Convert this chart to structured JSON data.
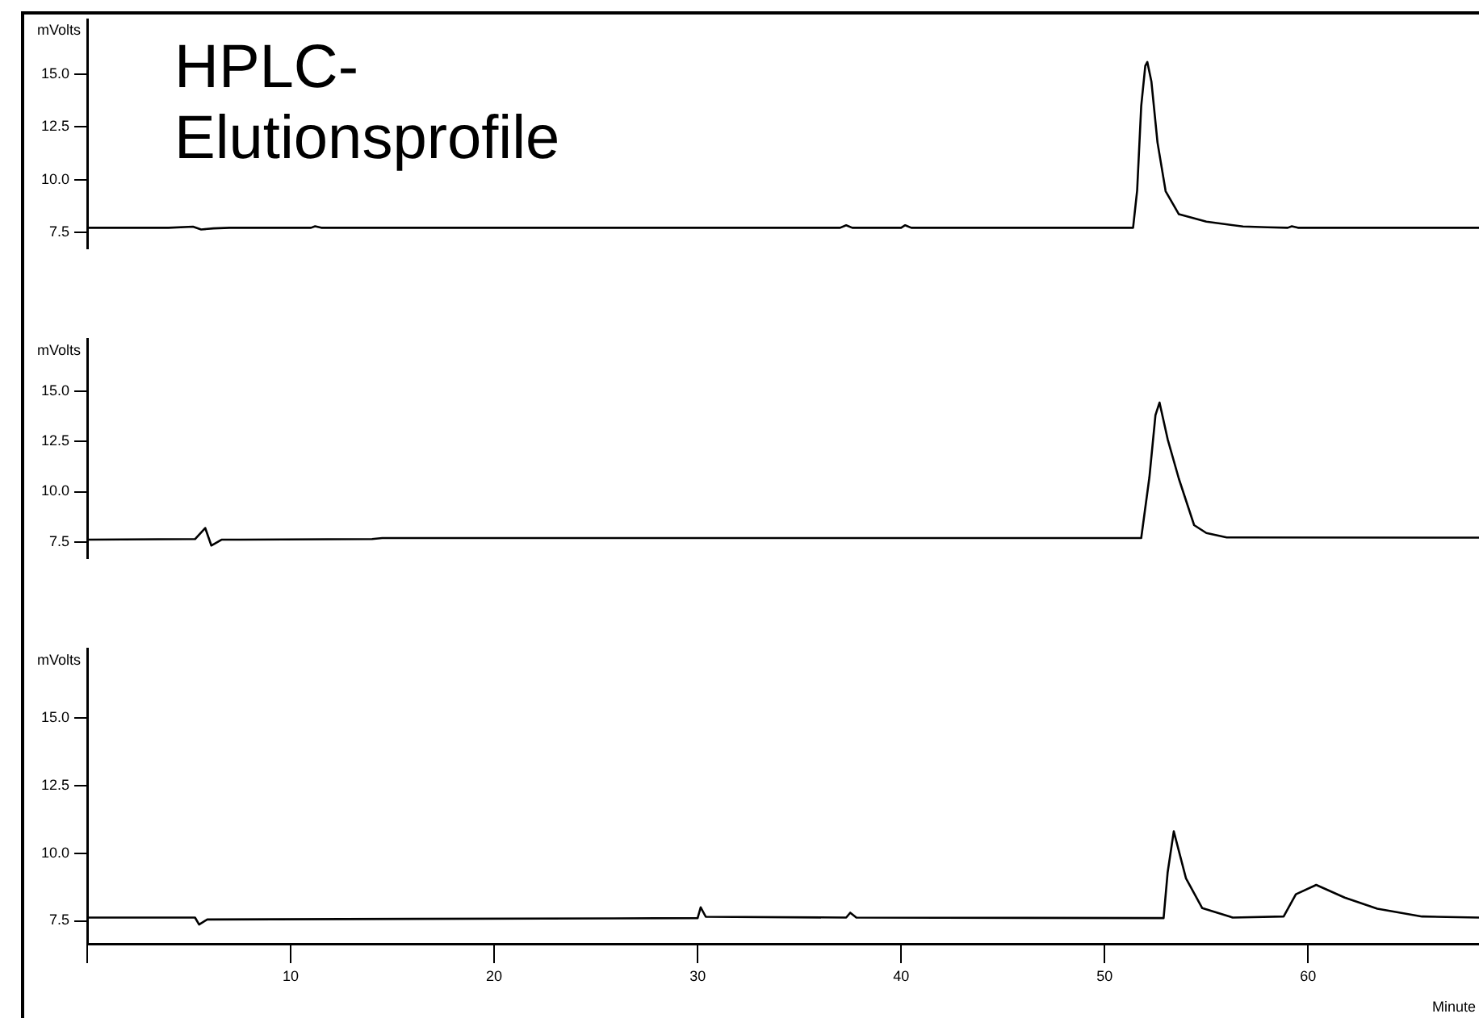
{
  "chart_data": [
    {
      "type": "line",
      "title": "HPLC-Elutionsprofile",
      "ylabel": "mVolts",
      "tick_labels": "y",
      "xlim": [
        0,
        68.4
      ],
      "ylim": [
        6.75,
        17.6
      ],
      "yticks": [
        {
          "value": 7.5,
          "label": "7.5"
        },
        {
          "value": 10,
          "label": "10.0"
        },
        {
          "value": 12.5,
          "label": "12.5"
        },
        {
          "value": 15,
          "label": "15.0"
        }
      ],
      "x": [
        0,
        4,
        5.2,
        5.6,
        6.2,
        7,
        11,
        11.2,
        11.5,
        37,
        37.3,
        37.6,
        40,
        40.2,
        40.5,
        51.4,
        51.6,
        51.8,
        52.0,
        52.1,
        52.3,
        52.6,
        53.0,
        53.65,
        55.0,
        56.8,
        58,
        59,
        59.2,
        59.5,
        68.4
      ],
      "series": [
        {
          "color": "#000000",
          "values": [
            7.73,
            7.73,
            7.78,
            7.65,
            7.7,
            7.73,
            7.73,
            7.8,
            7.73,
            7.73,
            7.85,
            7.73,
            7.73,
            7.85,
            7.73,
            7.73,
            9.5,
            13.5,
            15.4,
            15.58,
            14.66,
            11.77,
            9.46,
            8.37,
            8.02,
            7.79,
            7.75,
            7.73,
            7.8,
            7.73,
            7.73
          ]
        }
      ]
    },
    {
      "type": "line",
      "ylabel": "mVolts",
      "tick_labels": "y",
      "xlim": [
        0,
        68.4
      ],
      "ylim": [
        6.7,
        17.55
      ],
      "yticks": [
        {
          "value": 7.5,
          "label": "7.5"
        },
        {
          "value": 10,
          "label": "10.0"
        },
        {
          "value": 12.5,
          "label": "12.5"
        },
        {
          "value": 15,
          "label": "15.0"
        }
      ],
      "x": [
        0,
        5.3,
        5.8,
        6.1,
        6.6,
        7.5,
        14,
        14.5,
        51.8,
        52.2,
        52.5,
        52.7,
        53.1,
        53.65,
        54.4,
        55.0,
        56.0,
        68.4
      ],
      "series": [
        {
          "color": "#000000",
          "values": [
            7.62,
            7.65,
            8.2,
            7.33,
            7.62,
            7.62,
            7.65,
            7.7,
            7.7,
            10.7,
            13.8,
            14.42,
            12.6,
            10.64,
            8.34,
            7.95,
            7.73,
            7.72
          ]
        }
      ]
    },
    {
      "type": "line",
      "ylabel": "mVolts",
      "xlabel": "Minute",
      "xlim": [
        0,
        68.4
      ],
      "ylim": [
        6.65,
        17.55
      ],
      "xticks": [
        {
          "value": 0,
          "label": null
        },
        10,
        20,
        30,
        40,
        50,
        60
      ],
      "yticks": [
        {
          "value": 7.5,
          "label": "7.5"
        },
        {
          "value": 10,
          "label": "10.0"
        },
        {
          "value": 12.5,
          "label": "12.5"
        },
        {
          "value": 15,
          "label": "15.0"
        }
      ],
      "x": [
        0,
        5.3,
        5.5,
        5.9,
        30,
        30.15,
        30.4,
        37.3,
        37.5,
        37.8,
        52.9,
        53.1,
        53.4,
        54.0,
        54.8,
        56.3,
        58.8,
        59.4,
        60.4,
        61.8,
        63.4,
        65.6,
        68.4
      ],
      "series": [
        {
          "color": "#000000",
          "values": [
            7.62,
            7.62,
            7.36,
            7.55,
            7.6,
            8.0,
            7.65,
            7.62,
            7.8,
            7.62,
            7.6,
            9.3,
            10.81,
            9.07,
            7.97,
            7.62,
            7.66,
            8.48,
            8.83,
            8.36,
            7.95,
            7.66,
            7.62
          ]
        }
      ]
    }
  ]
}
